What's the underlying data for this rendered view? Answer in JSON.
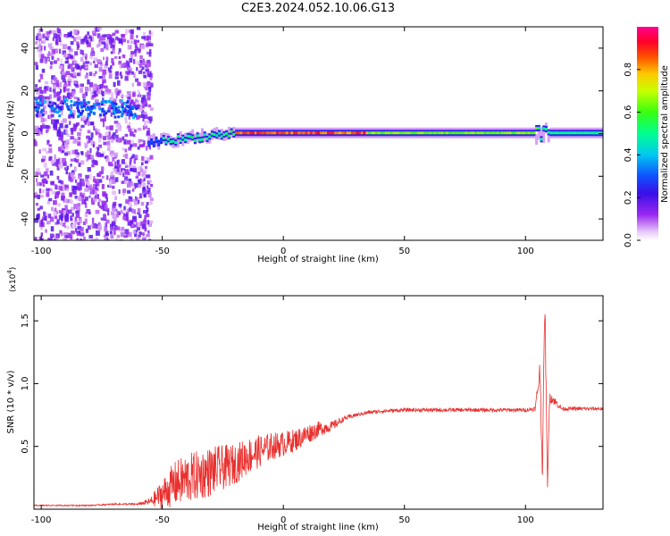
{
  "title": "C2E3.2024.052.10.06.G13",
  "chart_data": [
    {
      "type": "heatmap",
      "title": "C2E3.2024.052.10.06.G13",
      "xlabel": "Height of straight line (km)",
      "ylabel": "Frequency (Hz)",
      "xlim": [
        -103,
        132
      ],
      "ylim": [
        -50,
        50
      ],
      "x_ticks": [
        -100,
        -50,
        0,
        50,
        100
      ],
      "x_tick_labels": [
        "-100",
        "-50",
        "0",
        "50",
        "100"
      ],
      "y_ticks": [
        -40,
        -20,
        0,
        20,
        40
      ],
      "y_tick_labels": [
        "-40",
        "-20",
        "0",
        "20",
        "40"
      ],
      "colorbar": {
        "label": "Normalized spectral amplitude",
        "range": [
          0,
          1
        ],
        "ticks": [
          0,
          0.2,
          0.4,
          0.6,
          0.8
        ],
        "tick_labels": [
          "0.0",
          "0.2",
          "0.4",
          "0.6",
          "0.8"
        ],
        "colormap": "hsv-rainbow (white→violet→blue→cyan→green→yellow→orange→red→magenta)"
      },
      "features": [
        {
          "x_range": [
            -103,
            -55
          ],
          "description": "broadband noise (violet), all frequencies"
        },
        {
          "x_range": [
            -103,
            -65
          ],
          "freq": 13,
          "amplitude": 0.35
        },
        {
          "x_range": [
            -55,
            132
          ],
          "freq": 0,
          "description": "narrow carrier line near 0 Hz, amplitude rising toward red near x 0–30"
        },
        {
          "x": 107,
          "description": "disturbance near x≈107"
        }
      ],
      "grid": false
    },
    {
      "type": "line",
      "xlabel": "Height of straight line (km)",
      "ylabel": "SNR (10 * v/v)",
      "y_multiplier": "(x10^4)",
      "xlim": [
        -103,
        132
      ],
      "ylim": [
        0,
        1.7
      ],
      "x_ticks": [
        -100,
        -50,
        0,
        50,
        100
      ],
      "x_tick_labels": [
        "-100",
        "-50",
        "0",
        "50",
        "100"
      ],
      "y_ticks": [
        0.5,
        1.0,
        1.5
      ],
      "y_tick_labels": [
        "0.5",
        "1.0",
        "1.5"
      ],
      "color": "#e8302e",
      "grid": false,
      "series": [
        {
          "x": [
            -103,
            -90,
            -80,
            -70,
            -60,
            -55,
            -50,
            -45,
            -40,
            -35,
            -30,
            -25,
            -20,
            -15,
            -10,
            -5,
            0,
            5,
            10,
            15,
            20,
            25,
            30,
            35,
            40,
            50,
            60,
            70,
            80,
            90,
            100,
            104,
            106,
            107,
            108,
            109,
            110,
            115,
            120,
            132
          ],
          "values": [
            0.03,
            0.03,
            0.03,
            0.04,
            0.04,
            0.06,
            0.12,
            0.2,
            0.24,
            0.27,
            0.3,
            0.33,
            0.36,
            0.42,
            0.46,
            0.5,
            0.52,
            0.55,
            0.6,
            0.64,
            0.66,
            0.72,
            0.75,
            0.77,
            0.78,
            0.79,
            0.79,
            0.79,
            0.79,
            0.79,
            0.79,
            0.8,
            1.1,
            0.3,
            1.7,
            0.2,
            0.9,
            0.8,
            0.8,
            0.8
          ],
          "noise_amplitude": [
            0.005,
            0.005,
            0.005,
            0.006,
            0.008,
            0.03,
            0.12,
            0.18,
            0.2,
            0.2,
            0.2,
            0.18,
            0.16,
            0.15,
            0.13,
            0.11,
            0.1,
            0.09,
            0.08,
            0.06,
            0.04,
            0.02,
            0.015,
            0.015,
            0.015,
            0.015,
            0.015,
            0.015,
            0.015,
            0.015,
            0.015,
            0.02,
            0.1,
            0.1,
            0.1,
            0.1,
            0.05,
            0.015,
            0.015,
            0.015
          ]
        }
      ]
    }
  ]
}
